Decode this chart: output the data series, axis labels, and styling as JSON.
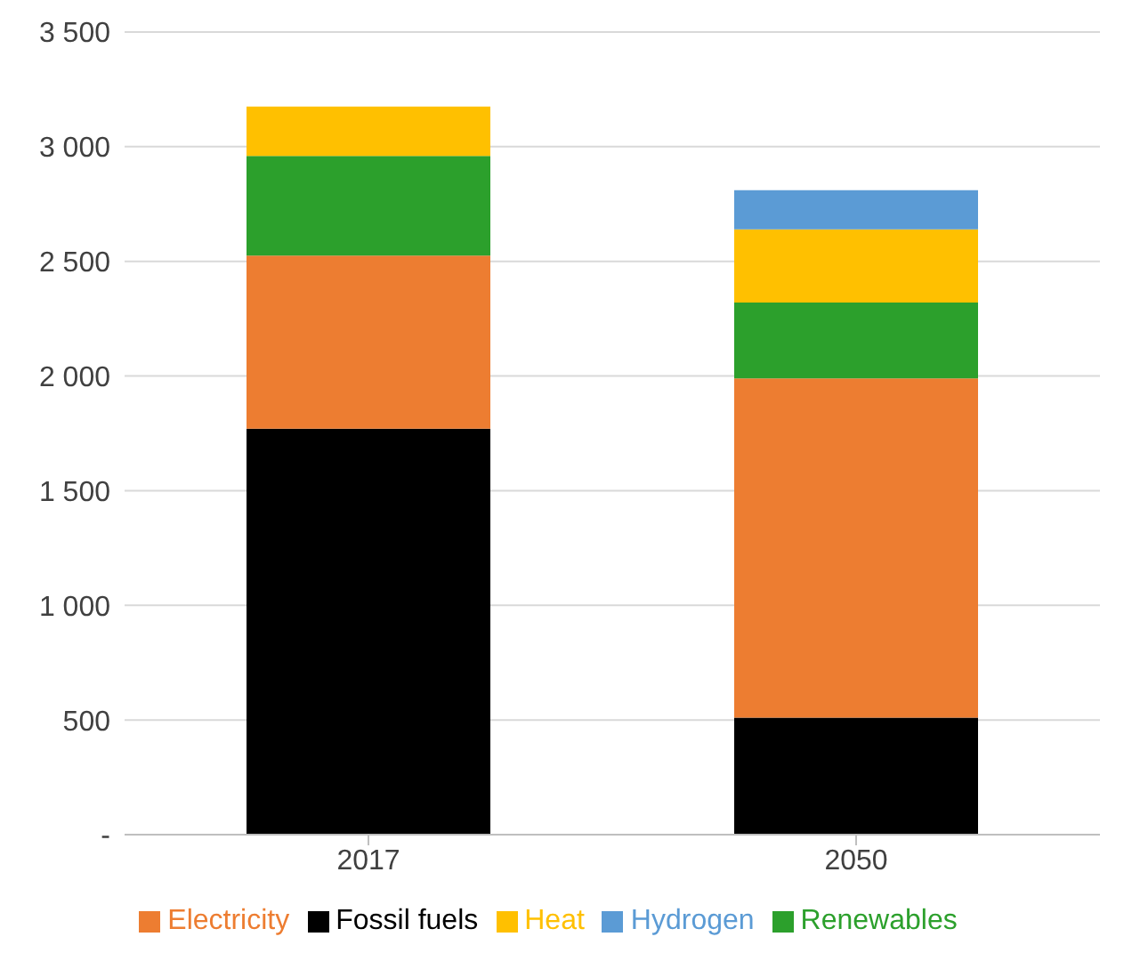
{
  "chart_data": {
    "type": "bar",
    "stacked": true,
    "categories": [
      "2017",
      "2050"
    ],
    "series": [
      {
        "name": "Fossil fuels",
        "color": "#000000",
        "values": [
          1770,
          510
        ]
      },
      {
        "name": "Electricity",
        "color": "#ed7d31",
        "values": [
          755,
          1480
        ]
      },
      {
        "name": "Renewables",
        "color": "#2ca02c",
        "values": [
          435,
          330
        ]
      },
      {
        "name": "Heat",
        "color": "#ffc000",
        "values": [
          215,
          320
        ]
      },
      {
        "name": "Hydrogen",
        "color": "#5b9bd5",
        "values": [
          null,
          170
        ]
      }
    ],
    "ylim": [
      0,
      3500
    ],
    "yticks": [
      {
        "value": 0,
        "label": "-"
      },
      500,
      {
        "value": 1000,
        "label": "1 000"
      },
      {
        "value": 1500,
        "label": "1 500"
      },
      {
        "value": 2000,
        "label": "2 000"
      },
      {
        "value": 2500,
        "label": "2 500"
      },
      {
        "value": 3000,
        "label": "3 000"
      },
      {
        "value": 3500,
        "label": "3 500"
      }
    ],
    "grid": "y",
    "legend": "bottom"
  }
}
